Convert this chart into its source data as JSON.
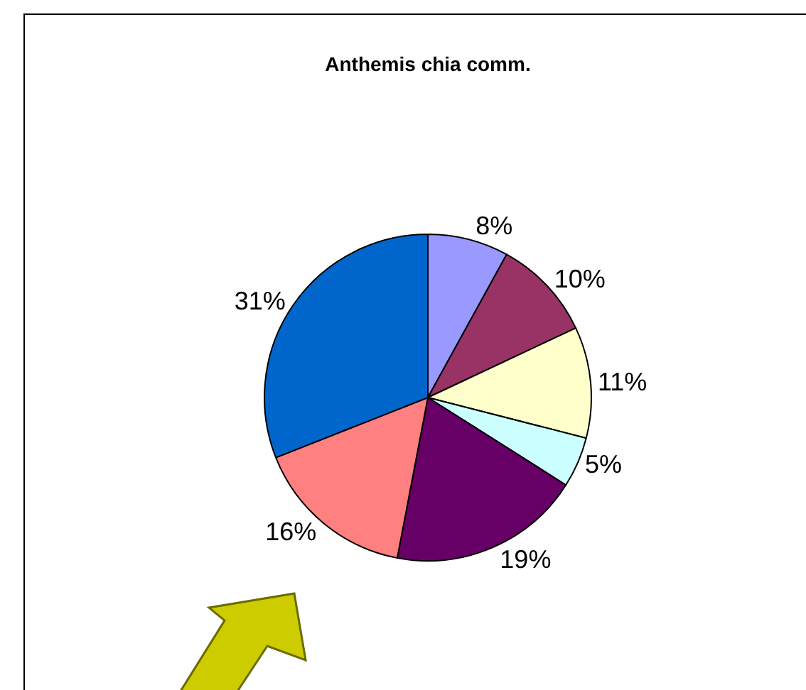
{
  "chart_data": {
    "type": "pie",
    "title": "Anthemis chia comm.",
    "categories": [
      null,
      null,
      null,
      null,
      null,
      null,
      null
    ],
    "values": [
      8,
      10,
      11,
      5,
      19,
      16,
      31
    ],
    "value_labels": [
      "8%",
      "10%",
      "11%",
      "5%",
      "19%",
      "16%",
      "31%"
    ],
    "colors": [
      "#9999ff",
      "#993366",
      "#ffffcc",
      "#ccffff",
      "#660066",
      "#ff8080",
      "#0066cc"
    ],
    "legend": false
  }
}
